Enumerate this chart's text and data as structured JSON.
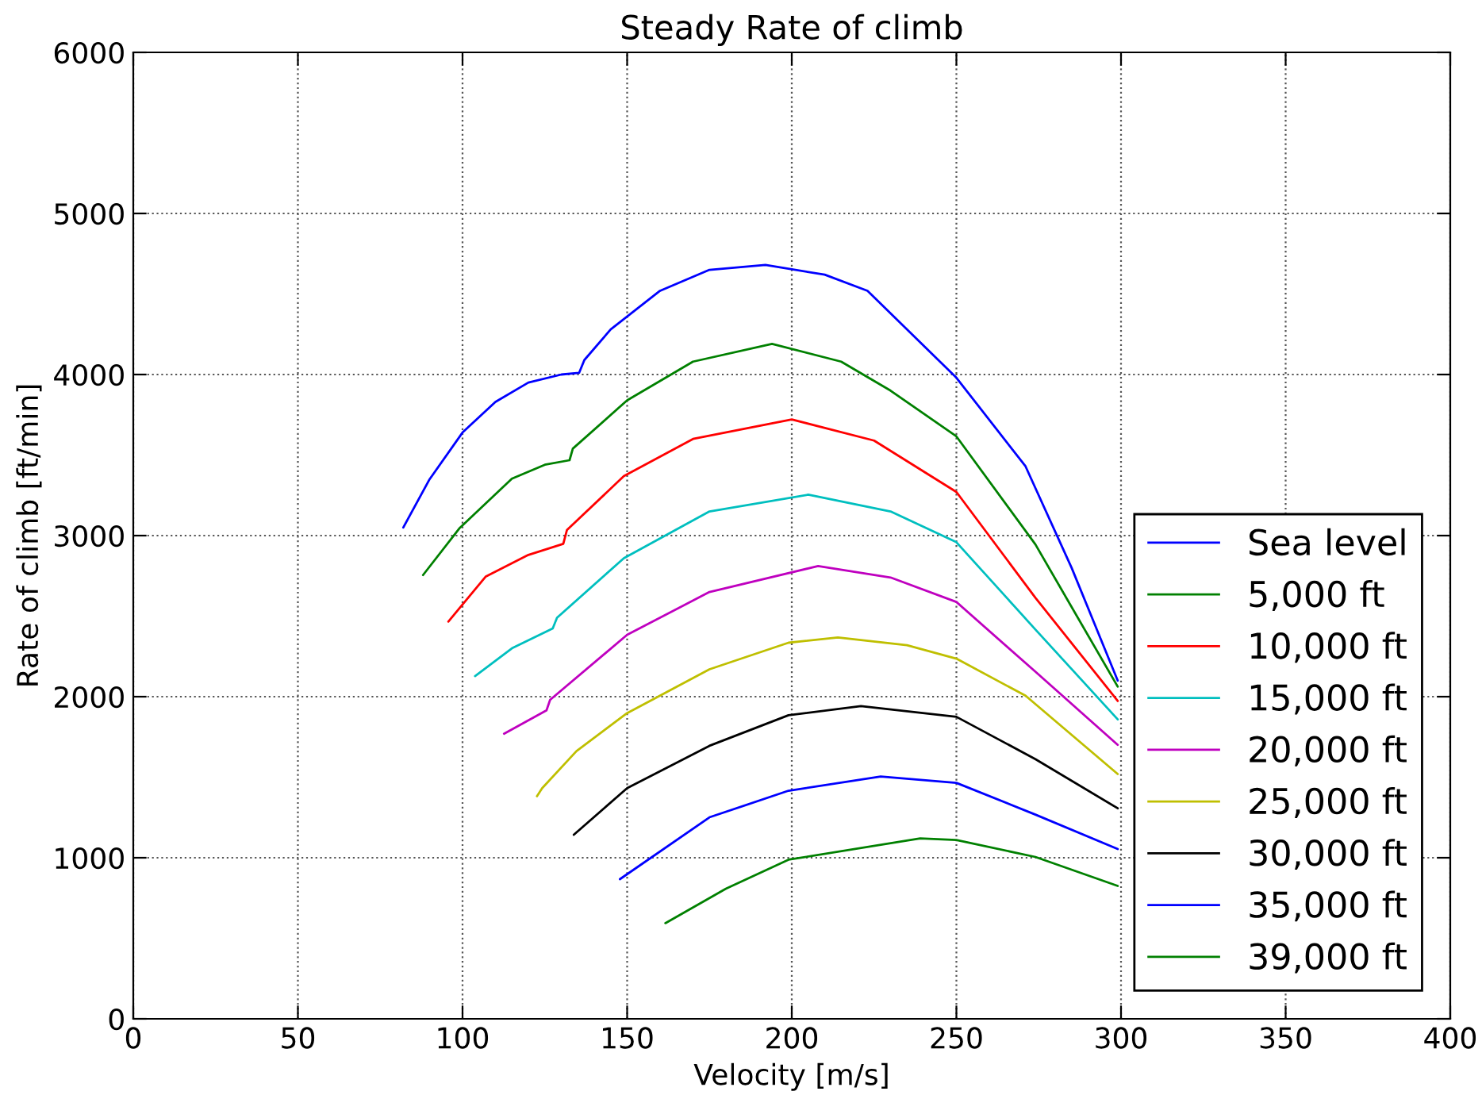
{
  "chart_data": {
    "type": "line",
    "title": "Steady Rate of climb",
    "xlabel": "Velocity [m/s]",
    "ylabel": "Rate of climb [ft/min]",
    "xlim": [
      0,
      400
    ],
    "ylim": [
      0,
      6000
    ],
    "xticks": [
      0,
      50,
      100,
      150,
      200,
      250,
      300,
      350,
      400
    ],
    "yticks": [
      0,
      1000,
      2000,
      3000,
      4000,
      5000,
      6000
    ],
    "grid": true,
    "legend": "bottom right",
    "marker": "none",
    "line_style": "solid",
    "series": [
      {
        "name": "Sea level",
        "color": "#0000ff",
        "x": [
          82,
          90,
          100,
          110,
          120,
          130,
          135.4,
          137,
          145,
          160,
          175,
          192,
          210,
          223,
          250,
          271,
          285,
          299
        ],
        "values": [
          3050,
          3350,
          3640,
          3830,
          3950,
          4000,
          4010,
          4090,
          4280,
          4520,
          4650,
          4680,
          4620,
          4520,
          3980,
          3430,
          2800,
          2100
        ]
      },
      {
        "name": "5,000 ft",
        "color": "#008000",
        "x": [
          88,
          99,
          115,
          125,
          132.5,
          133.5,
          150,
          170,
          194,
          215,
          230,
          250,
          274,
          299
        ],
        "values": [
          2755,
          3044,
          3353,
          3440,
          3468,
          3540,
          3840,
          4080,
          4190,
          4080,
          3900,
          3616,
          2945,
          2062
        ]
      },
      {
        "name": "10,000 ft",
        "color": "#ff0000",
        "x": [
          95.7,
          107,
          120,
          130.6,
          131.7,
          149,
          170,
          200,
          225,
          250,
          274,
          299
        ],
        "values": [
          2466,
          2745,
          2880,
          2949,
          3034,
          3369,
          3600,
          3721,
          3590,
          3271,
          2614,
          1973
        ]
      },
      {
        "name": "15,000 ft",
        "color": "#00bfbf",
        "x": [
          103.8,
          115,
          127.4,
          128.7,
          149,
          175,
          205,
          230,
          250,
          274,
          299
        ],
        "values": [
          2128,
          2300,
          2424,
          2490,
          2860,
          3150,
          3254,
          3150,
          2959,
          2417,
          1859
        ]
      },
      {
        "name": "20,000 ft",
        "color": "#bf00bf",
        "x": [
          112.6,
          125.5,
          126.6,
          150,
          175,
          208,
          230,
          250,
          274,
          299
        ],
        "values": [
          1770,
          1915,
          1980,
          2384,
          2650,
          2811,
          2740,
          2588,
          2155,
          1701
        ]
      },
      {
        "name": "25,000 ft",
        "color": "#bfbf00",
        "x": [
          122.6,
          124.2,
          134.6,
          150,
          175,
          199,
          214,
          235,
          250,
          271,
          299
        ],
        "values": [
          1382,
          1432,
          1662,
          1898,
          2170,
          2335,
          2368,
          2320,
          2236,
          2006,
          1520
        ]
      },
      {
        "name": "30,000 ft",
        "color": "#000000",
        "x": [
          133.8,
          150,
          175,
          199,
          221,
          250,
          274,
          299
        ],
        "values": [
          1143,
          1432,
          1695,
          1885,
          1941,
          1875,
          1612,
          1307
        ]
      },
      {
        "name": "35,000 ft",
        "color": "#0000ff",
        "x": [
          147.8,
          175,
          199,
          227,
          250,
          274,
          299
        ],
        "values": [
          867,
          1251,
          1416,
          1504,
          1465,
          1268,
          1054
        ]
      },
      {
        "name": "39,000 ft",
        "color": "#008000",
        "x": [
          161.6,
          180,
          199,
          239,
          250,
          274,
          299
        ],
        "values": [
          594,
          808,
          988,
          1120,
          1110,
          1005,
          825
        ]
      }
    ]
  }
}
